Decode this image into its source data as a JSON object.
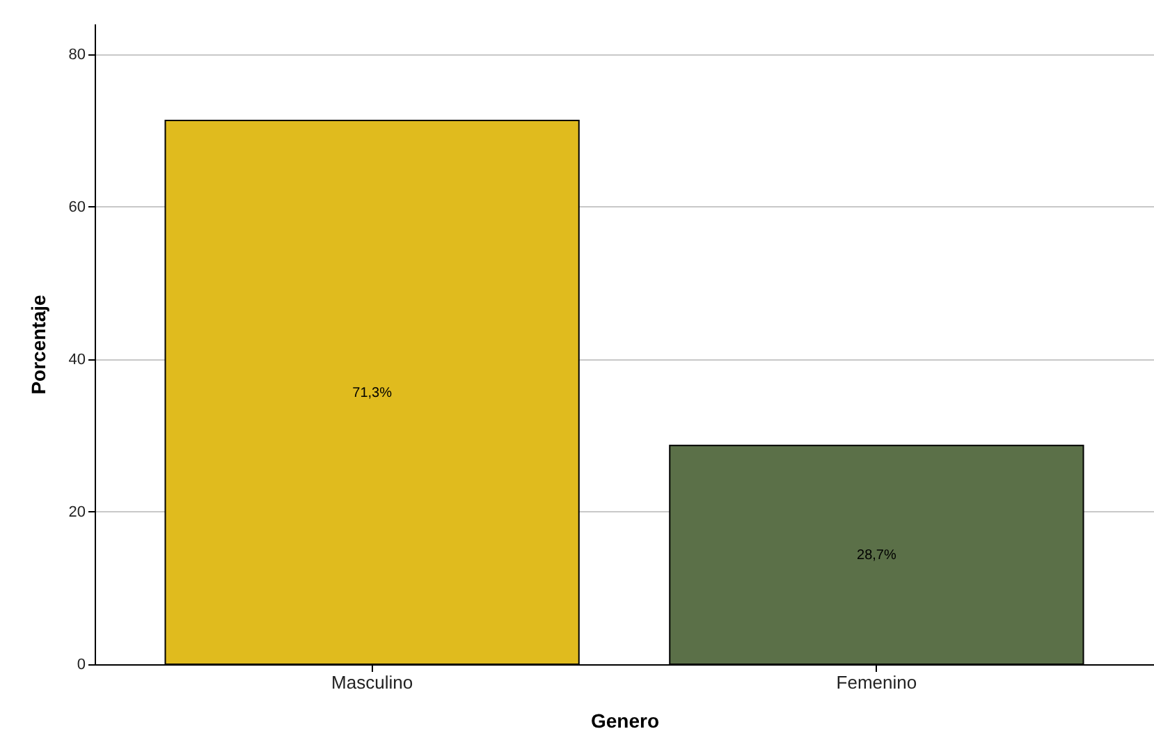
{
  "chart_data": {
    "type": "bar",
    "xlabel": "Genero",
    "ylabel": "Porcentaje",
    "categories": [
      "Masculino",
      "Femenino"
    ],
    "values": [
      71.3,
      28.7
    ],
    "colors": [
      "#e0bb1e",
      "#5b7048"
    ],
    "value_labels": [
      "71,3%",
      "28,7%"
    ],
    "ylim": [
      0,
      84
    ],
    "yticks": [
      0,
      20,
      40,
      60,
      80
    ],
    "grid": "y"
  }
}
